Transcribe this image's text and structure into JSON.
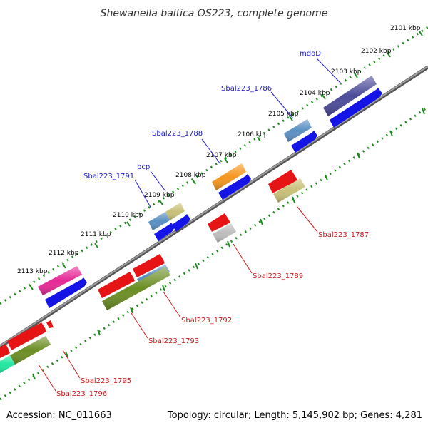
{
  "title": "Shewanella baltica OS223, complete genome",
  "footer": {
    "accession": "Accession: NC_011663",
    "summary": "Topology: circular; Length: 5,145,902 bp; Genes: 4,281"
  },
  "ticks": [
    "2101 kbp",
    "2102 kbp",
    "2103 kbp",
    "2104 kbp",
    "2105 kbp",
    "2106 kbp",
    "2107 kbp",
    "2108 kbp",
    "2109 kbp",
    "2110 kbp",
    "2111 kbp",
    "2112 kbp",
    "2113 kbp"
  ],
  "labels_forward": [
    "mdoD",
    "Sbal223_1786",
    "Sbal223_1788",
    "bcp",
    "Sbal223_1791"
  ],
  "labels_reverse": [
    "Sbal223_1787",
    "Sbal223_1789",
    "Sbal223_1792",
    "Sbal223_1793",
    "Sbal223_1795",
    "Sbal223_1796"
  ],
  "colors": {
    "backbone": "#808080",
    "dots": "#1a8a1a",
    "cds": "#1414e6",
    "gene_red": "#e61414",
    "purple": "#4b4b99",
    "steel": "#5a8fc2",
    "orange": "#f5961e",
    "khaki": "#c8c078",
    "olive": "#6b8e23",
    "magenta": "#e62896",
    "grey": "#bdbdbd",
    "mint": "#20e8a0"
  }
}
